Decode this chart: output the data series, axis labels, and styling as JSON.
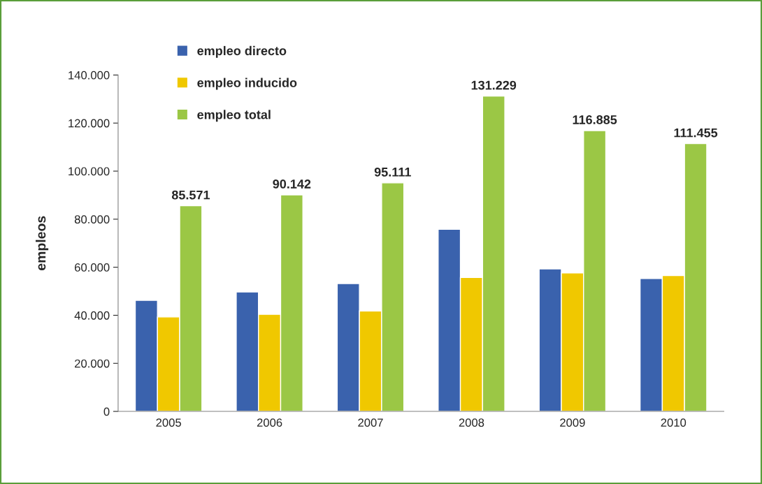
{
  "chart_data": {
    "type": "bar",
    "ylabel": "empleos",
    "categories": [
      "2005",
      "2006",
      "2007",
      "2008",
      "2009",
      "2010"
    ],
    "series": [
      {
        "name": "empleo directo",
        "color": "#3a62ad",
        "values": [
          46200,
          49700,
          53200,
          75800,
          59300,
          55300
        ]
      },
      {
        "name": "empleo inducido",
        "color": "#f0c800",
        "values": [
          39300,
          40400,
          41800,
          55700,
          57600,
          56500
        ]
      },
      {
        "name": "empleo total",
        "color": "#9bc745",
        "values": [
          85571,
          90142,
          95111,
          131229,
          116885,
          111455
        ],
        "value_labels": [
          "85.571",
          "90.142",
          "95.111",
          "131.229",
          "116.885",
          "111.455"
        ]
      }
    ],
    "ylim": [
      0,
      140000
    ],
    "yticks": [
      {
        "value": 0,
        "label": "0"
      },
      {
        "value": 20000,
        "label": "20.000"
      },
      {
        "value": 40000,
        "label": "40.000"
      },
      {
        "value": 60000,
        "label": "60.000"
      },
      {
        "value": 80000,
        "label": "80.000"
      },
      {
        "value": 100000,
        "label": "100.000"
      },
      {
        "value": 120000,
        "label": "120.000"
      },
      {
        "value": 140000,
        "label": "140.000"
      }
    ],
    "grid": false,
    "legend": "top left"
  }
}
